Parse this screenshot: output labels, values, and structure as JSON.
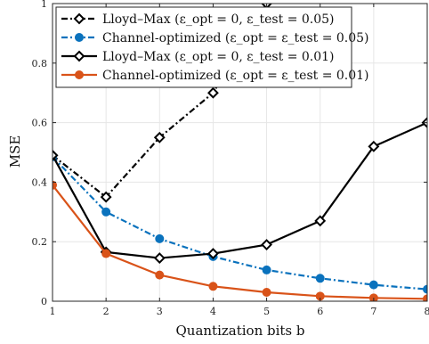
{
  "chart_data": {
    "type": "line",
    "xlabel": "Quantization bits b",
    "ylabel": "MSE",
    "xlim": [
      1,
      8
    ],
    "ylim": [
      0,
      1
    ],
    "xticks": [
      1,
      2,
      3,
      4,
      5,
      6,
      7,
      8
    ],
    "yticks": [
      0,
      0.2,
      0.4,
      0.6,
      0.8,
      1
    ],
    "grid": true,
    "legend_position": "top-left",
    "series": [
      {
        "name": "Lloyd–Max (ε_opt = 0, ε_test = 0.05)",
        "color": "#000000",
        "line_style": "dashdot",
        "marker": "diamond",
        "x": [
          1,
          2,
          3,
          4,
          5
        ],
        "y": [
          0.49,
          0.35,
          0.55,
          0.7,
          1.0
        ]
      },
      {
        "name": "Channel-optimized (ε_opt = ε_test = 0.05)",
        "color": "#0a72bd",
        "line_style": "dashdot",
        "marker": "circle",
        "x": [
          1,
          2,
          3,
          4,
          5,
          6,
          7,
          8
        ],
        "y": [
          0.485,
          0.3,
          0.21,
          0.15,
          0.105,
          0.077,
          0.055,
          0.04
        ]
      },
      {
        "name": "Lloyd–Max (ε_opt = 0, ε_test = 0.01)",
        "color": "#000000",
        "line_style": "solid",
        "marker": "diamond",
        "x": [
          1,
          2,
          3,
          4,
          5,
          6,
          7,
          8
        ],
        "y": [
          0.49,
          0.165,
          0.145,
          0.16,
          0.19,
          0.27,
          0.52,
          0.6
        ]
      },
      {
        "name": "Channel-optimized (ε_opt = ε_test = 0.01)",
        "color": "#d95319",
        "line_style": "solid",
        "marker": "circle",
        "x": [
          1,
          2,
          3,
          4,
          5,
          6,
          7,
          8
        ],
        "y": [
          0.39,
          0.16,
          0.088,
          0.05,
          0.03,
          0.017,
          0.011,
          0.008
        ]
      }
    ]
  }
}
